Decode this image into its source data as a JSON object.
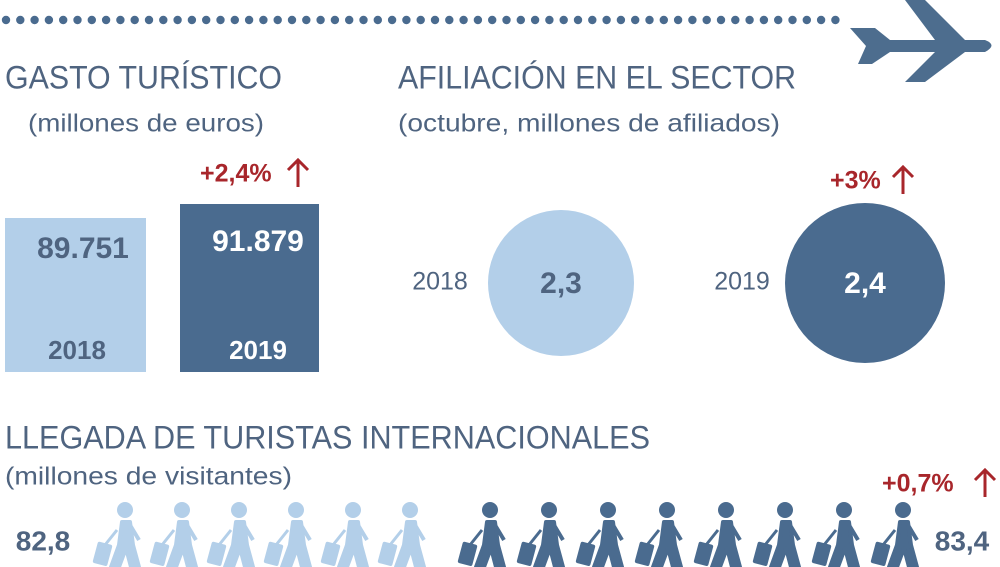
{
  "gasto": {
    "title": "GASTO TURÍSTICO",
    "subtitle": "(millones de euros)",
    "change": "+2,4%",
    "items": [
      {
        "year": "2018",
        "value": "89.751"
      },
      {
        "year": "2019",
        "value": "91.879"
      }
    ]
  },
  "afiliacion": {
    "title": "AFILIACIÓN EN EL SECTOR",
    "subtitle": "(octubre, millones de afiliados)",
    "change": "+3%",
    "items": [
      {
        "year": "2018",
        "value": "2,3"
      },
      {
        "year": "2019",
        "value": "2,4"
      }
    ]
  },
  "llegada": {
    "title": "LLEGADA DE TURISTAS INTERNACIONALES",
    "subtitle": "(millones de visitantes)",
    "change": "+0,7%",
    "start": "82,8",
    "end": "83,4"
  }
}
